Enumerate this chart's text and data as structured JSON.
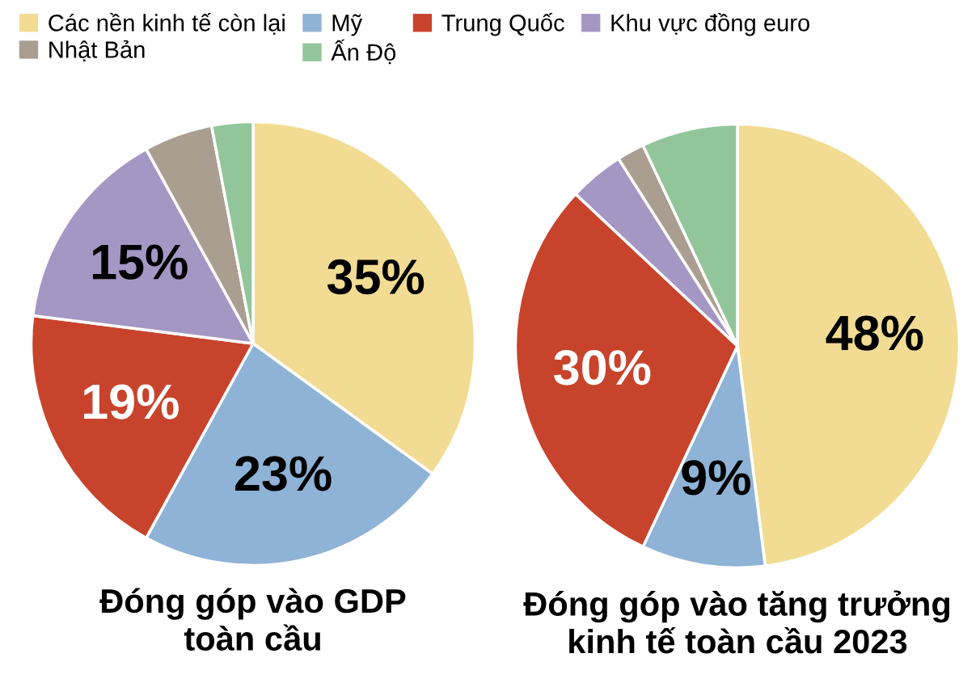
{
  "chart_data": [
    {
      "type": "pie",
      "title": "Đóng góp vào GDP\ntoàn cầu",
      "legend": "top",
      "categories": [
        "Các nền kinh tế còn lại",
        "Mỹ",
        "Trung Quốc",
        "Khu vực đồng euro",
        "Nhật Bản",
        "Ấn Độ"
      ],
      "values": [
        35,
        23,
        19,
        15,
        5,
        3
      ],
      "colors": [
        "#f2dc93",
        "#8fb3d6",
        "#c8432b",
        "#a597c4",
        "#aa9e91",
        "#92c69a"
      ],
      "value_labels": [
        "35%",
        "23%",
        "19%",
        "15%",
        null,
        null
      ]
    },
    {
      "type": "pie",
      "title": "Đóng góp vào tăng trưởng\nkinh tế toàn cầu 2023",
      "categories": [
        null,
        null,
        null,
        null,
        null,
        null
      ],
      "values": [
        48,
        9,
        30,
        4,
        2,
        7
      ],
      "colors": [
        "#f2dc93",
        "#8fb3d6",
        "#c8432b",
        "#a597c4",
        "#aa9e91",
        "#92c69a"
      ],
      "value_labels": [
        "48%",
        "9%",
        "30%",
        null,
        null,
        null
      ]
    }
  ]
}
